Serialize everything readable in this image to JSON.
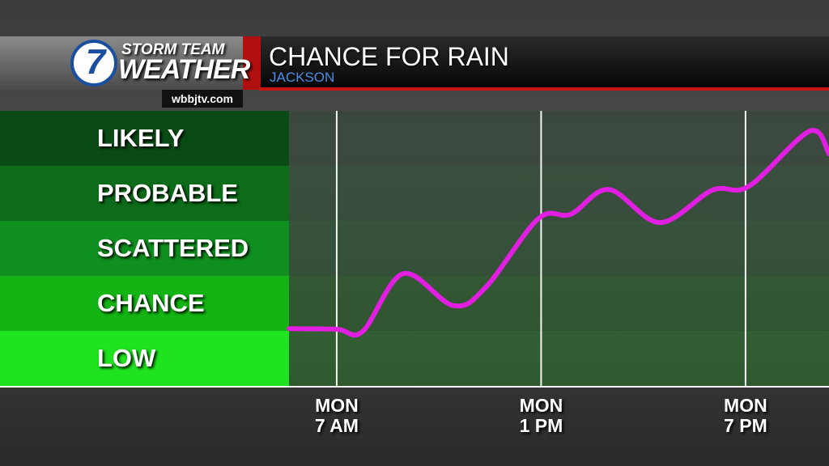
{
  "branding": {
    "logo_number": "7",
    "station_line1": "STORM TEAM",
    "station_line2": "WEATHER",
    "website": "wbbjtv.com"
  },
  "chart_data": {
    "type": "line",
    "title": "CHANCE FOR RAIN",
    "subtitle": "JACKSON",
    "levels": [
      "LOW",
      "CHANCE",
      "SCATTERED",
      "PROBABLE",
      "LIKELY"
    ],
    "level_colors": [
      "#1ee31e",
      "#14b414",
      "#0f8f1f",
      "#0c6c1a",
      "#0a4b15"
    ],
    "x": [
      5.6,
      7.0,
      7.76,
      8.95,
      10.42,
      11.37,
      12.92,
      13.87,
      14.99,
      16.48,
      18.03,
      19.1,
      20.88,
      21.45
    ],
    "values": [
      1.04,
      1.03,
      0.99,
      2.04,
      1.46,
      1.79,
      3.04,
      3.12,
      3.57,
      2.97,
      3.56,
      3.63,
      4.63,
      4.22
    ],
    "color": "#e21ee2",
    "xlim": [
      5.6,
      21.45
    ],
    "ylim": [
      0,
      5
    ],
    "xticks": [
      {
        "value": 7,
        "label": "MON\n7 AM"
      },
      {
        "value": 13,
        "label": "MON\n1 PM"
      },
      {
        "value": 19,
        "label": "MON\n7 PM"
      }
    ],
    "grid": true
  }
}
